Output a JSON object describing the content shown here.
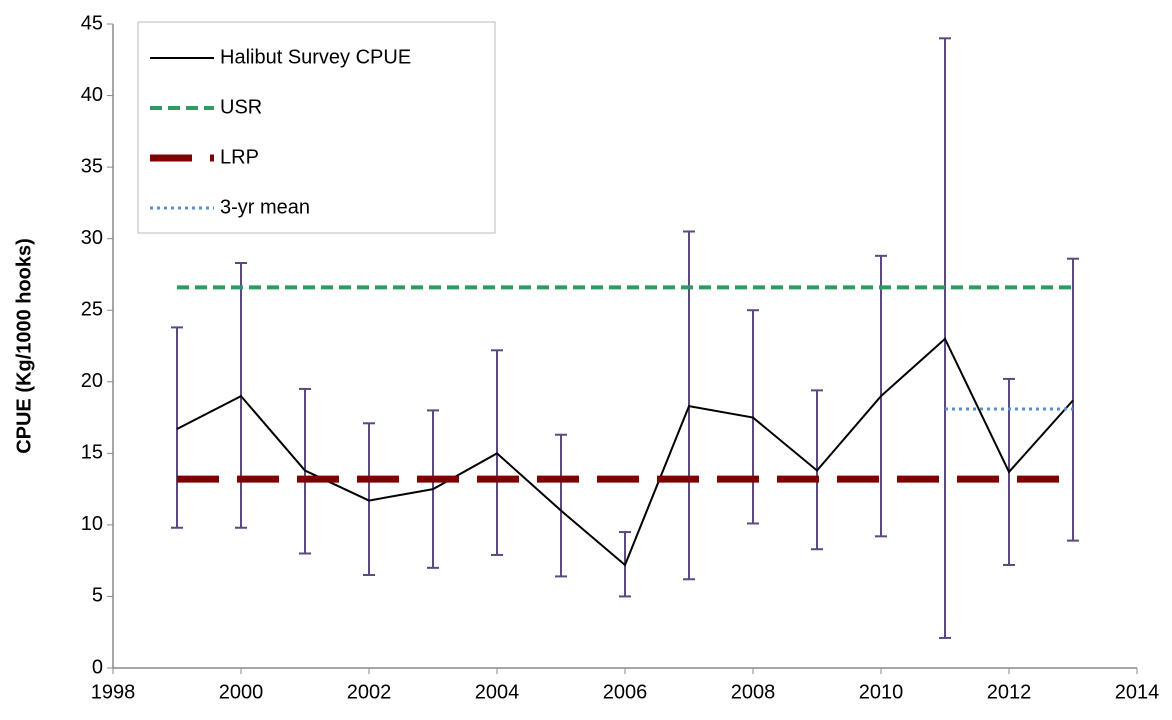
{
  "chart_data": {
    "type": "line",
    "ylabel": "CPUE (Kg/1000 hooks)",
    "xlim": [
      1998,
      2014
    ],
    "xticks": [
      1998,
      2000,
      2002,
      2004,
      2006,
      2008,
      2010,
      2012,
      2014
    ],
    "ylim": [
      0,
      45
    ],
    "yticks": [
      0,
      5,
      10,
      15,
      20,
      25,
      30,
      35,
      40,
      45
    ],
    "legend": "upper left",
    "series": [
      {
        "name": "Halibut Survey CPUE",
        "color": "#000000",
        "style": "solid",
        "error_color": "#5a4a7e",
        "x": [
          1999,
          2000,
          2001,
          2002,
          2003,
          2004,
          2005,
          2006,
          2007,
          2008,
          2009,
          2010,
          2011,
          2012,
          2013
        ],
        "values": [
          16.7,
          19.0,
          13.8,
          11.7,
          12.5,
          15.0,
          11.0,
          7.2,
          18.3,
          17.5,
          13.8,
          19.0,
          23.0,
          13.7,
          18.7
        ],
        "lower": [
          9.8,
          9.8,
          8.0,
          6.5,
          7.0,
          7.9,
          6.4,
          5.0,
          6.2,
          10.1,
          8.3,
          9.2,
          2.1,
          7.2,
          8.9
        ],
        "upper": [
          23.8,
          28.3,
          19.5,
          17.1,
          18.0,
          22.2,
          16.3,
          9.5,
          30.5,
          25.0,
          19.4,
          28.8,
          44.0,
          20.2,
          28.6
        ]
      },
      {
        "name": "USR",
        "color": "#2e9a5f",
        "style": "dashed",
        "x": [
          1999,
          2013
        ],
        "values": [
          26.6,
          26.6
        ]
      },
      {
        "name": "LRP",
        "color": "#7f0000",
        "style": "longdash",
        "x": [
          1999,
          2013
        ],
        "values": [
          13.2,
          13.2
        ]
      },
      {
        "name": "3-yr mean",
        "color": "#5b8fc9",
        "style": "dotted",
        "x": [
          2011,
          2013
        ],
        "values": [
          18.1,
          18.1
        ]
      }
    ]
  }
}
